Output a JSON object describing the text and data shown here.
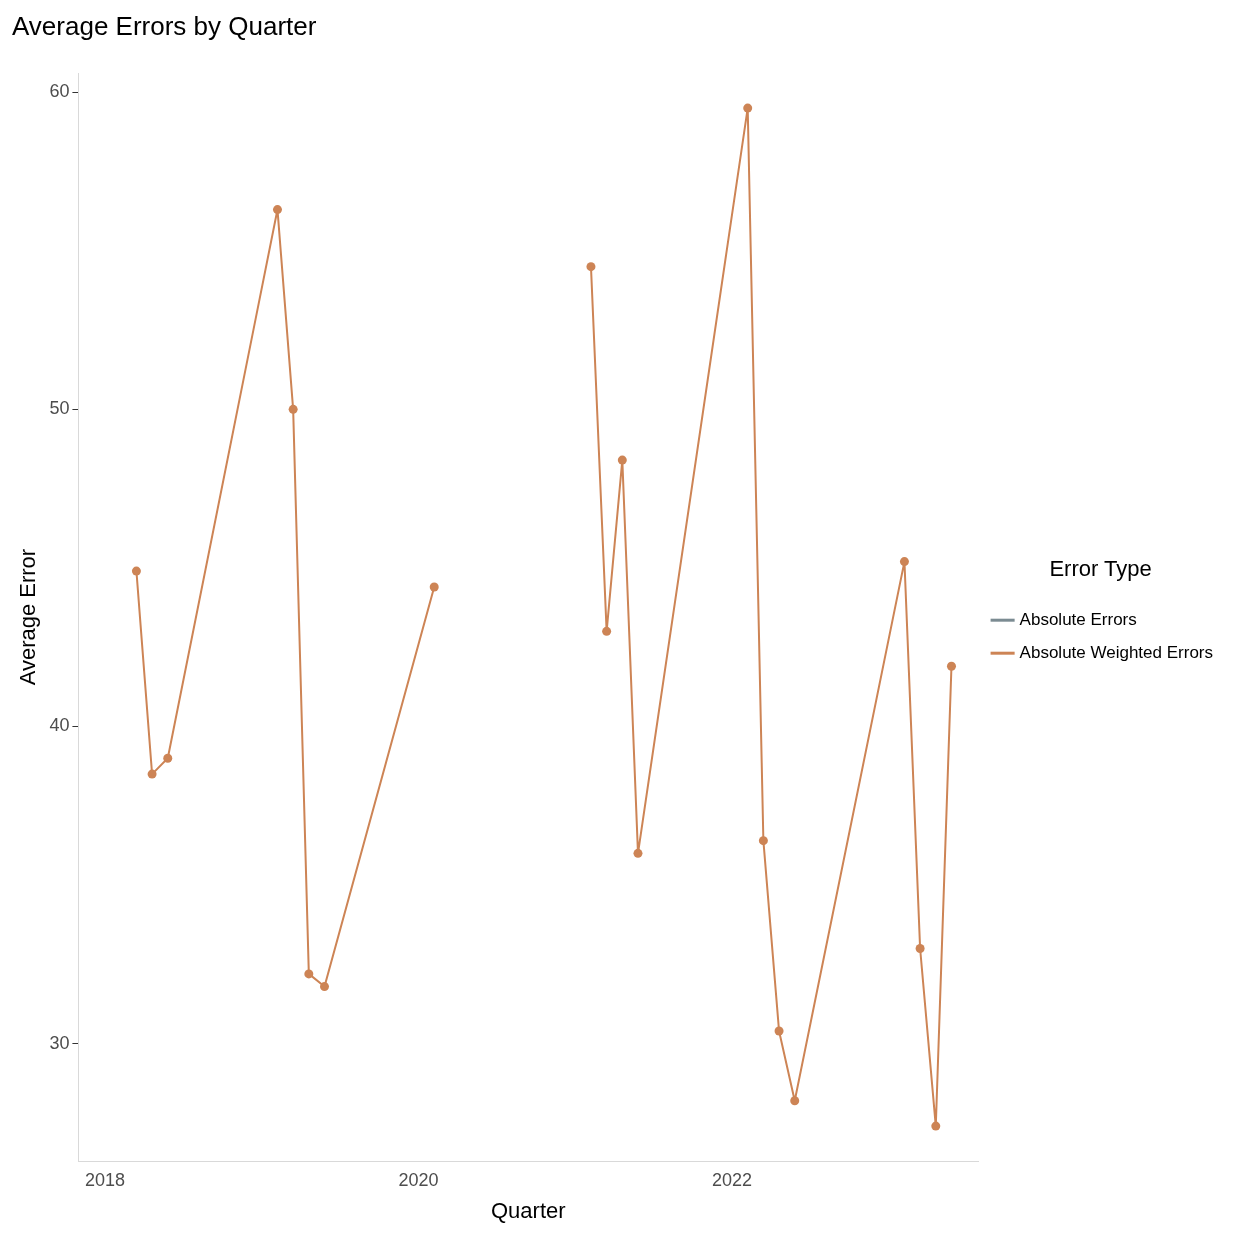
{
  "chart_data": {
    "type": "line",
    "title": "Average Errors by Quarter",
    "xlabel": "Quarter",
    "ylabel": "Average Error",
    "legend_title": "Error Type",
    "x": [
      2018.2,
      2018.3,
      2018.4,
      2019.1,
      2019.2,
      2019.3,
      2019.4,
      2020.1,
      2020.5,
      2021.1,
      2021.2,
      2021.3,
      2021.4,
      2022.1,
      2022.2,
      2022.3,
      2022.4,
      2023.1,
      2023.2,
      2023.3,
      2023.4
    ],
    "series": [
      {
        "name": "Absolute Errors",
        "color": "#7b8b92",
        "values": [
          null,
          null,
          null,
          null,
          null,
          null,
          null,
          null,
          null,
          null,
          null,
          null,
          null,
          null,
          null,
          null,
          null,
          null,
          null,
          null,
          null
        ]
      },
      {
        "name": "Absolute Weighted Errors",
        "color": "#cd8455",
        "values": [
          44.9,
          38.5,
          39.0,
          56.3,
          50.0,
          32.2,
          31.8,
          44.4,
          null,
          54.5,
          43.0,
          48.4,
          36.0,
          59.5,
          36.4,
          30.4,
          28.2,
          45.2,
          33.0,
          27.4,
          41.9
        ]
      }
    ],
    "xlim": [
      2017.83,
      2023.57
    ],
    "xticks": [
      2018,
      2020,
      2022
    ],
    "ylim": [
      26.3,
      60.6
    ],
    "yticks": [
      30,
      40,
      50,
      60
    ],
    "grid": false,
    "legend": "right",
    "marker": "circle",
    "line_style": "solid"
  }
}
